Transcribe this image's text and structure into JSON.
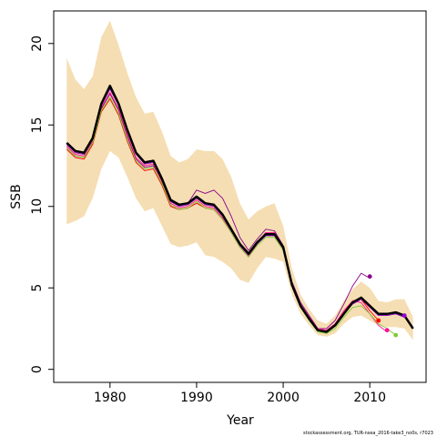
{
  "chart_data": {
    "type": "line",
    "title": "",
    "xlabel": "Year",
    "ylabel": "SSB",
    "caption": "stockassessment.org, TUR-nsea_2016-take3_no0s, r7023",
    "xlim": [
      1973.5,
      2016.5
    ],
    "ylim": [
      -0.8,
      22
    ],
    "x_ticks": [
      1980,
      1990,
      2000,
      2010
    ],
    "y_ticks": [
      0,
      5,
      10,
      15,
      20
    ],
    "colors": {
      "band": "#F5DEB3",
      "main": "#000000",
      "retro": [
        "#8B008B",
        "#FF0000",
        "#FF1493",
        "#7CCD32",
        "#9400D3"
      ]
    },
    "band": {
      "x": [
        1975,
        1976,
        1977,
        1978,
        1979,
        1980,
        1981,
        1982,
        1983,
        1984,
        1985,
        1986,
        1987,
        1988,
        1989,
        1990,
        1991,
        1992,
        1993,
        1994,
        1995,
        1996,
        1997,
        1998,
        1999,
        2000,
        2001,
        2002,
        2003,
        2004,
        2005,
        2006,
        2007,
        2008,
        2009,
        2010,
        2011,
        2012,
        2013,
        2014,
        2015
      ],
      "lower": [
        8.9,
        9.1,
        9.4,
        10.5,
        12.3,
        13.4,
        13.0,
        11.8,
        10.5,
        9.7,
        9.9,
        8.8,
        7.7,
        7.5,
        7.6,
        7.8,
        7.0,
        6.9,
        6.6,
        6.2,
        5.5,
        5.3,
        6.2,
        6.9,
        6.8,
        6.6,
        4.6,
        3.4,
        2.7,
        2.1,
        2.0,
        2.2,
        2.8,
        3.2,
        3.3,
        3.0,
        2.7,
        2.6,
        2.6,
        2.5,
        1.8
      ],
      "upper": [
        19.1,
        17.8,
        17.2,
        18.0,
        20.4,
        21.4,
        19.9,
        18.2,
        16.7,
        15.7,
        15.8,
        14.6,
        13.1,
        12.7,
        12.9,
        13.5,
        13.4,
        13.4,
        12.9,
        11.8,
        10.2,
        9.2,
        9.7,
        10.0,
        10.2,
        8.8,
        6.2,
        4.6,
        3.7,
        3.0,
        2.8,
        3.3,
        4.2,
        4.9,
        5.4,
        5.0,
        4.2,
        4.1,
        4.3,
        4.3,
        3.2
      ]
    },
    "series": [
      {
        "x": [
          1975,
          1976,
          1977,
          1978,
          1979,
          1980,
          1981,
          1982,
          1983,
          1984,
          1985,
          1986,
          1987,
          1988,
          1989,
          1990,
          1991,
          1992,
          1993,
          1994,
          1995,
          1996,
          1997,
          1998,
          1999,
          2000,
          2001,
          2002,
          2003,
          2004,
          2005,
          2006,
          2007,
          2008,
          2009,
          2010,
          2011,
          2012,
          2013,
          2014,
          2015
        ],
        "values": [
          13.9,
          13.4,
          13.3,
          14.2,
          16.3,
          17.4,
          16.3,
          14.7,
          13.3,
          12.7,
          12.8,
          11.7,
          10.4,
          10.1,
          10.2,
          10.6,
          10.2,
          10.1,
          9.5,
          8.6,
          7.7,
          7.1,
          7.8,
          8.3,
          8.3,
          7.5,
          5.2,
          3.9,
          3.1,
          2.4,
          2.3,
          2.7,
          3.4,
          4.1,
          4.4,
          3.9,
          3.4,
          3.4,
          3.5,
          3.3,
          2.5
        ]
      },
      {
        "x": [
          1975,
          1976,
          1977,
          1978,
          1979,
          1980,
          1981,
          1982,
          1983,
          1984,
          1985,
          1986,
          1987,
          1988,
          1989,
          1990,
          1991,
          1992,
          1993,
          1994,
          1995,
          1996,
          1997,
          1998,
          1999,
          2000,
          2001,
          2002,
          2003,
          2004,
          2005,
          2006,
          2007,
          2008,
          2009,
          2010
        ],
        "values": [
          13.6,
          13.1,
          13.0,
          13.9,
          16.0,
          16.9,
          15.9,
          14.3,
          12.9,
          12.4,
          12.5,
          11.6,
          10.3,
          10.1,
          10.2,
          11.0,
          10.8,
          11.0,
          10.5,
          9.4,
          8.1,
          7.3,
          8.0,
          8.6,
          8.5,
          7.6,
          5.4,
          4.1,
          3.3,
          2.5,
          2.5,
          3.0,
          4.0,
          5.1,
          5.9,
          5.6
        ]
      },
      {
        "x": [
          1975,
          1976,
          1977,
          1978,
          1979,
          1980,
          1981,
          1982,
          1983,
          1984,
          1985,
          1986,
          1987,
          1988,
          1989,
          1990,
          1991,
          1992,
          1993,
          1994,
          1995,
          1996,
          1997,
          1998,
          1999,
          2000,
          2001,
          2002,
          2003,
          2004,
          2005,
          2006,
          2007,
          2008,
          2009,
          2010,
          2011
        ],
        "values": [
          13.5,
          13.0,
          12.9,
          13.8,
          15.8,
          16.6,
          15.6,
          14.0,
          12.7,
          12.2,
          12.3,
          11.3,
          10.0,
          9.8,
          9.9,
          10.2,
          9.9,
          9.8,
          9.2,
          8.4,
          7.5,
          6.9,
          7.7,
          8.3,
          8.3,
          7.4,
          5.2,
          3.9,
          3.1,
          2.4,
          2.3,
          2.7,
          3.5,
          4.2,
          4.3,
          3.6,
          3.0
        ]
      },
      {
        "x": [
          1975,
          1976,
          1977,
          1978,
          1979,
          1980,
          1981,
          1982,
          1983,
          1984,
          1985,
          1986,
          1987,
          1988,
          1989,
          1990,
          1991,
          1992,
          1993,
          1994,
          1995,
          1996,
          1997,
          1998,
          1999,
          2000,
          2001,
          2002,
          2003,
          2004,
          2005,
          2006,
          2007,
          2008,
          2009,
          2010,
          2011,
          2012
        ],
        "values": [
          13.7,
          13.2,
          13.1,
          14.0,
          16.1,
          17.0,
          16.0,
          14.4,
          13.0,
          12.5,
          12.6,
          11.5,
          10.2,
          9.9,
          10.0,
          10.4,
          10.0,
          9.9,
          9.3,
          8.5,
          7.6,
          7.0,
          7.8,
          8.4,
          8.4,
          7.5,
          5.3,
          4.0,
          3.2,
          2.5,
          2.4,
          2.8,
          3.6,
          4.2,
          4.1,
          3.4,
          2.7,
          2.3
        ]
      },
      {
        "x": [
          1975,
          1976,
          1977,
          1978,
          1979,
          1980,
          1981,
          1982,
          1983,
          1984,
          1985,
          1986,
          1987,
          1988,
          1989,
          1990,
          1991,
          1992,
          1993,
          1994,
          1995,
          1996,
          1997,
          1998,
          1999,
          2000,
          2001,
          2002,
          2003,
          2004,
          2005,
          2006,
          2007,
          2008,
          2009,
          2010,
          2011,
          2012,
          2013
        ],
        "values": [
          13.6,
          13.1,
          13.0,
          13.9,
          15.9,
          16.7,
          15.7,
          14.1,
          12.8,
          12.3,
          12.4,
          11.4,
          10.1,
          9.8,
          9.9,
          10.3,
          9.9,
          9.8,
          9.2,
          8.4,
          7.5,
          6.9,
          7.6,
          8.1,
          8.1,
          7.3,
          5.1,
          3.8,
          3.0,
          2.3,
          2.2,
          2.5,
          3.2,
          3.8,
          3.9,
          3.4,
          2.8,
          2.5,
          2.1
        ]
      },
      {
        "x": [
          1975,
          1976,
          1977,
          1978,
          1979,
          1980,
          1981,
          1982,
          1983,
          1984,
          1985,
          1986,
          1987,
          1988,
          1989,
          1990,
          1991,
          1992,
          1993,
          1994,
          1995,
          1996,
          1997,
          1998,
          1999,
          2000,
          2001,
          2002,
          2003,
          2004,
          2005,
          2006,
          2007,
          2008,
          2009,
          2010,
          2011,
          2012,
          2013,
          2014
        ],
        "values": [
          13.8,
          13.3,
          13.2,
          14.1,
          16.2,
          17.2,
          16.2,
          14.6,
          13.2,
          12.6,
          12.7,
          11.6,
          10.3,
          10.0,
          10.1,
          10.5,
          10.1,
          10.0,
          9.4,
          8.5,
          7.6,
          7.0,
          7.7,
          8.2,
          8.2,
          7.4,
          5.2,
          3.9,
          3.1,
          2.4,
          2.3,
          2.7,
          3.4,
          4.0,
          4.3,
          3.8,
          3.3,
          3.3,
          3.4,
          3.2
        ]
      }
    ],
    "endpoints": [
      {
        "x": 2010,
        "y": 5.7
      },
      {
        "x": 2011,
        "y": 3.0
      },
      {
        "x": 2012,
        "y": 2.4
      },
      {
        "x": 2013,
        "y": 2.1
      },
      {
        "x": 2014,
        "y": 3.3
      }
    ]
  }
}
